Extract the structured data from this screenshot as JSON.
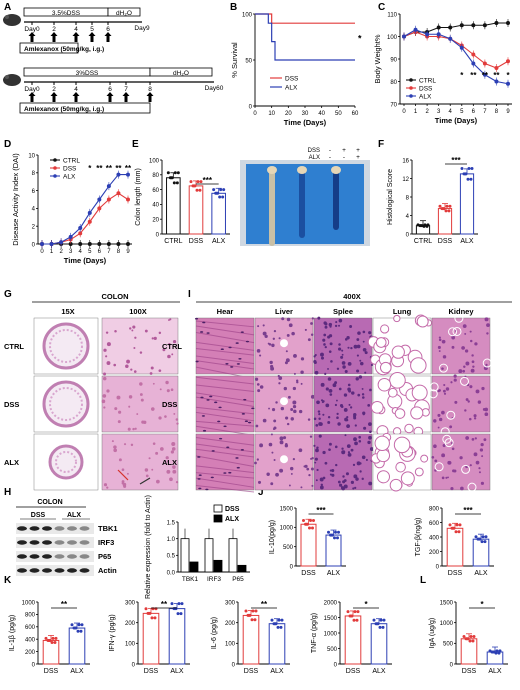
{
  "colors": {
    "ctrl": "#111111",
    "dss": "#e23b3b",
    "alx": "#2c3fb4",
    "he_pink": "#d98ac0",
    "he_purple": "#8b3f95",
    "tissue_white": "#f4eaf3"
  },
  "panel_letters": [
    "A",
    "B",
    "C",
    "D",
    "E",
    "F",
    "G",
    "I",
    "H",
    "J",
    "K",
    "L"
  ],
  "panelA": {
    "row1": {
      "top_label": "3.5%DSS",
      "top_label2": "dH₂O",
      "end": "Day9",
      "days": [
        "Day0",
        "2",
        "4",
        "5",
        "6"
      ],
      "drug": "Amlexanox (50mg/kg, i.g.)"
    },
    "row2": {
      "top_label": "3%DSS",
      "top_label2": "dH₂O",
      "end": "Day60",
      "days": [
        "Day0",
        "2",
        "4",
        "6",
        "7",
        "8"
      ],
      "drug": "Amlexanox (50mg/kg, i.g.)"
    }
  },
  "panelE_photo": {
    "legend_rows": [
      {
        "label": "DSS",
        "marks": [
          "-",
          "+",
          "+"
        ]
      },
      {
        "label": "ALX",
        "marks": [
          "-",
          "-",
          "+"
        ]
      }
    ]
  },
  "panelG": {
    "title": "COLON",
    "cols": [
      "15X",
      "100X"
    ],
    "rows": [
      "CTRL",
      "DSS",
      "ALX"
    ]
  },
  "panelI": {
    "title": "400X",
    "cols": [
      "Hear",
      "Liver",
      "Splee",
      "Lung",
      "Kidney"
    ],
    "rows": [
      "CTRL",
      "DSS",
      "ALX"
    ]
  },
  "panelH": {
    "blot_title": "COLON",
    "groups": [
      "DSS",
      "ALX"
    ],
    "bands": [
      "TBK1",
      "IRF3",
      "P65",
      "Actin"
    ]
  },
  "chart_data": [
    {
      "panel": "B",
      "type": "line",
      "xlabel": "Time (Days)",
      "ylabel": "% Survival",
      "xlim": [
        0,
        60
      ],
      "ylim": [
        0,
        100
      ],
      "xticks": [
        0,
        10,
        20,
        30,
        40,
        50,
        60
      ],
      "yticks": [
        0,
        50,
        100
      ],
      "significance": "*",
      "series": [
        {
          "name": "DSS",
          "x": [
            0,
            10,
            10,
            60
          ],
          "y": [
            100,
            100,
            90,
            90
          ]
        },
        {
          "name": "ALX",
          "x": [
            0,
            8,
            8,
            10,
            10,
            12,
            12,
            60
          ],
          "y": [
            100,
            100,
            90,
            90,
            70,
            70,
            50,
            50
          ]
        }
      ]
    },
    {
      "panel": "C",
      "type": "line",
      "xlabel": "Time (Days)",
      "ylabel": "Body Weight%",
      "ylim": [
        70,
        110
      ],
      "xticks": [
        "0",
        "1",
        "2",
        "3",
        "4",
        "5",
        "6",
        "7",
        "8",
        "9"
      ],
      "yticks": [
        70,
        80,
        90,
        100,
        110
      ],
      "stars": [
        "*",
        "**",
        "**",
        "**",
        "*"
      ],
      "series": [
        {
          "name": "CTRL",
          "x": [
            0,
            1,
            2,
            3,
            4,
            5,
            6,
            7,
            8,
            9
          ],
          "y": [
            100,
            102,
            102,
            104,
            104,
            105,
            105,
            105,
            106,
            106
          ]
        },
        {
          "name": "DSS",
          "x": [
            0,
            1,
            2,
            3,
            4,
            5,
            6,
            7,
            8,
            9
          ],
          "y": [
            100,
            102,
            100,
            100,
            99,
            96,
            92,
            88,
            86,
            89
          ]
        },
        {
          "name": "ALX",
          "x": [
            0,
            1,
            2,
            3,
            4,
            5,
            6,
            7,
            8,
            9
          ],
          "y": [
            100,
            103,
            101,
            101,
            99,
            95,
            88,
            83,
            80,
            79
          ]
        }
      ]
    },
    {
      "panel": "D",
      "type": "line",
      "xlabel": "Time (Days)",
      "ylabel": "Disease Activity Index (DAI)",
      "ylim": [
        0,
        10
      ],
      "xticks": [
        "0",
        "1",
        "2",
        "3",
        "4",
        "5",
        "6",
        "7",
        "8",
        "9"
      ],
      "yticks": [
        0,
        2,
        4,
        6,
        8,
        10
      ],
      "stars": [
        "*",
        "**",
        "**",
        "**",
        "**"
      ],
      "series": [
        {
          "name": "CTRL",
          "x": [
            0,
            1,
            2,
            3,
            4,
            5,
            6,
            7,
            8,
            9
          ],
          "y": [
            0,
            0,
            0,
            0,
            0,
            0,
            0,
            0,
            0,
            0
          ]
        },
        {
          "name": "DSS",
          "x": [
            0,
            1,
            2,
            3,
            4,
            5,
            6,
            7,
            8,
            9
          ],
          "y": [
            0,
            0,
            0.2,
            0.5,
            1.2,
            2.5,
            4,
            5,
            5.7,
            5
          ]
        },
        {
          "name": "ALX",
          "x": [
            0,
            1,
            2,
            3,
            4,
            5,
            6,
            7,
            8,
            9
          ],
          "y": [
            0,
            0,
            0.2,
            0.8,
            1.8,
            3.5,
            5,
            6.5,
            7.8,
            7.8
          ]
        }
      ]
    },
    {
      "panel": "E",
      "type": "bar",
      "ylabel": "Colon length (mm)",
      "ylim": [
        0,
        100
      ],
      "yticks": [
        0,
        20,
        40,
        60,
        80,
        100
      ],
      "categories": [
        "CTRL",
        "DSS",
        "ALX"
      ],
      "values": [
        76,
        65,
        55
      ],
      "significance": "***"
    },
    {
      "panel": "F",
      "type": "bar",
      "ylabel": "Histological Score",
      "ylim": [
        0,
        16
      ],
      "yticks": [
        0,
        4,
        8,
        12,
        16
      ],
      "categories": [
        "CTRL",
        "DSS",
        "ALX"
      ],
      "values": [
        1.8,
        5.5,
        13
      ],
      "significance": "***"
    },
    {
      "panel": "H",
      "type": "bar",
      "ylabel": "Relative expression (fold to Actin)",
      "ylim": [
        0,
        1.5
      ],
      "yticks": [
        0.0,
        0.5,
        1.0,
        1.5
      ],
      "categories": [
        "TBK1",
        "IRF3",
        "P65"
      ],
      "series": [
        {
          "name": "DSS",
          "values": [
            1.0,
            1.0,
            1.0
          ]
        },
        {
          "name": "ALX",
          "values": [
            0.3,
            0.35,
            0.2
          ]
        }
      ]
    },
    {
      "panel": "J1",
      "type": "bar",
      "ylabel": "IL-10(pg/g)",
      "ylim": [
        0,
        1500
      ],
      "yticks": [
        0,
        500,
        1000,
        1500
      ],
      "categories": [
        "DSS",
        "ALX"
      ],
      "values": [
        1080,
        800
      ],
      "significance": "***"
    },
    {
      "panel": "J2",
      "type": "bar",
      "ylabel": "TGF-β(ng/g)",
      "ylim": [
        0,
        800
      ],
      "yticks": [
        0,
        200,
        400,
        600,
        800
      ],
      "categories": [
        "DSS",
        "ALX"
      ],
      "values": [
        520,
        370
      ],
      "significance": "***"
    },
    {
      "panel": "K1",
      "type": "bar",
      "ylabel": "IL-1β (pg/g)",
      "ylim": [
        0,
        1000
      ],
      "yticks": [
        0,
        200,
        400,
        600,
        800,
        1000
      ],
      "categories": [
        "DSS",
        "ALX"
      ],
      "values": [
        380,
        580
      ],
      "significance": "**"
    },
    {
      "panel": "K2",
      "type": "bar",
      "ylabel": "IFN-γ (pg/g)",
      "ylim": [
        0,
        300
      ],
      "yticks": [
        0,
        100,
        200,
        300
      ],
      "categories": [
        "DSS",
        "ALX"
      ],
      "values": [
        245,
        268
      ],
      "significance": "**"
    },
    {
      "panel": "K3",
      "type": "bar",
      "ylabel": "IL-6 (pg/g)",
      "ylim": [
        0,
        300
      ],
      "yticks": [
        0,
        100,
        200,
        300
      ],
      "categories": [
        "DSS",
        "ALX"
      ],
      "values": [
        235,
        195
      ],
      "significance": "**"
    },
    {
      "panel": "K4",
      "type": "bar",
      "ylabel": "TNF-α (pg/g)",
      "ylim": [
        0,
        2000
      ],
      "yticks": [
        0,
        500,
        1000,
        1500,
        2000
      ],
      "categories": [
        "DSS",
        "ALX"
      ],
      "values": [
        1550,
        1300
      ],
      "significance": "*"
    },
    {
      "panel": "L",
      "type": "bar",
      "ylabel": "IgA (ug/g)",
      "ylim": [
        0,
        1500
      ],
      "yticks": [
        0,
        500,
        1000,
        1500
      ],
      "categories": [
        "DSS",
        "ALX"
      ],
      "values": [
        610,
        290
      ],
      "significance": "*"
    }
  ]
}
